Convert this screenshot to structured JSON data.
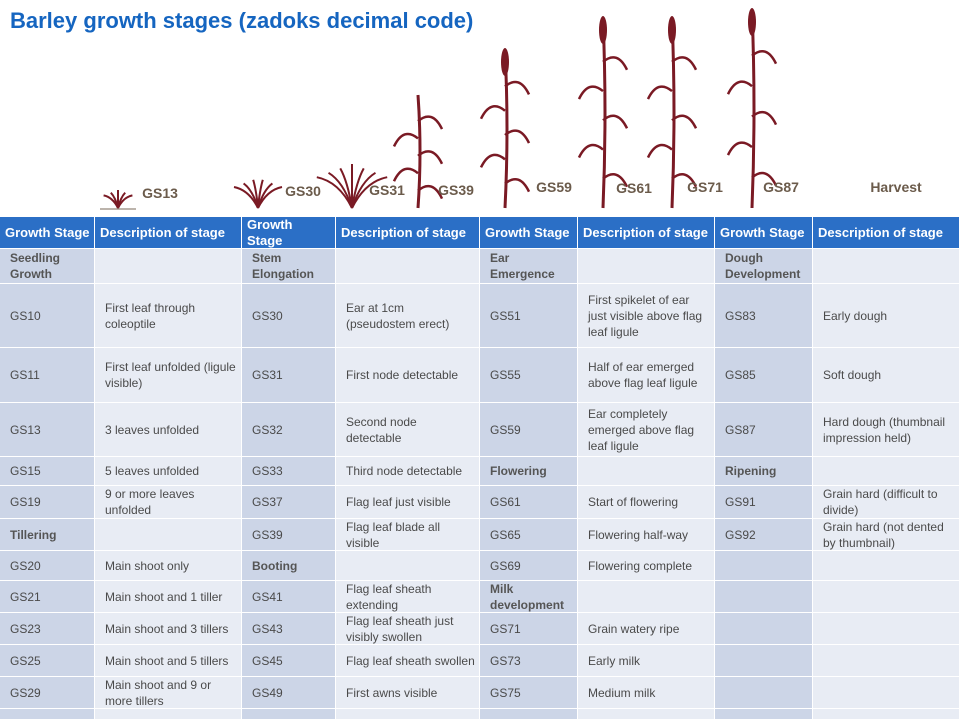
{
  "title": "Barley growth stages (zadoks decimal code)",
  "stage_labels": [
    "GS13",
    "GS30",
    "GS31",
    "GS39",
    "GS59",
    "GS61",
    "GS71",
    "GS87",
    "Harvest"
  ],
  "table": {
    "header": [
      "Growth Stage",
      "Description of stage",
      "Growth Stage",
      "Description of stage",
      "Growth Stage",
      "Description of stage",
      "Growth Stage",
      "Description of stage"
    ],
    "rows": [
      [
        "Seedling Growth",
        "",
        "Stem Elongation",
        "",
        "Ear Emergence",
        "",
        "Dough Development",
        ""
      ],
      [
        "GS10",
        "First leaf through coleoptile",
        "GS30",
        "Ear at 1cm (pseudostem erect)",
        "GS51",
        "First spikelet of ear just visible above flag leaf ligule",
        "GS83",
        "Early dough"
      ],
      [
        "GS11",
        "First leaf unfolded (ligule visible)",
        "GS31",
        "First node detectable",
        "GS55",
        "Half of ear emerged above flag leaf ligule",
        "GS85",
        "Soft dough"
      ],
      [
        "GS13",
        "3 leaves unfolded",
        "GS32",
        "Second node detectable",
        "GS59",
        "Ear completely emerged above flag leaf ligule",
        "GS87",
        "Hard dough (thumbnail impression held)"
      ],
      [
        "GS15",
        "5 leaves unfolded",
        "GS33",
        "Third node detectable",
        "Flowering",
        "",
        "Ripening",
        ""
      ],
      [
        "GS19",
        "9 or more leaves unfolded",
        "GS37",
        "Flag leaf just visible",
        "GS61",
        "Start of flowering",
        "GS91",
        "Grain hard (difficult to divide)"
      ],
      [
        "Tillering",
        "",
        "GS39",
        "Flag leaf blade all visible",
        "GS65",
        "Flowering half-way",
        "GS92",
        "Grain hard (not dented by thumbnail)"
      ],
      [
        "GS20",
        "Main shoot only",
        "Booting",
        "",
        "GS69",
        "Flowering complete",
        "",
        ""
      ],
      [
        "GS21",
        "Main shoot and 1 tiller",
        "GS41",
        "Flag leaf sheath extending",
        "Milk development",
        "",
        "",
        ""
      ],
      [
        "GS23",
        "Main shoot and 3 tillers",
        "GS43",
        "Flag leaf sheath just visibly swollen",
        "GS71",
        "Grain watery ripe",
        "",
        ""
      ],
      [
        "GS25",
        "Main shoot and 5 tillers",
        "GS45",
        "Flag leaf sheath swollen",
        "GS73",
        "Early milk",
        "",
        ""
      ],
      [
        "GS29",
        "Main shoot and 9 or more tillers",
        "GS49",
        "First awns visible",
        "GS75",
        "Medium milk",
        "",
        ""
      ]
    ]
  }
}
